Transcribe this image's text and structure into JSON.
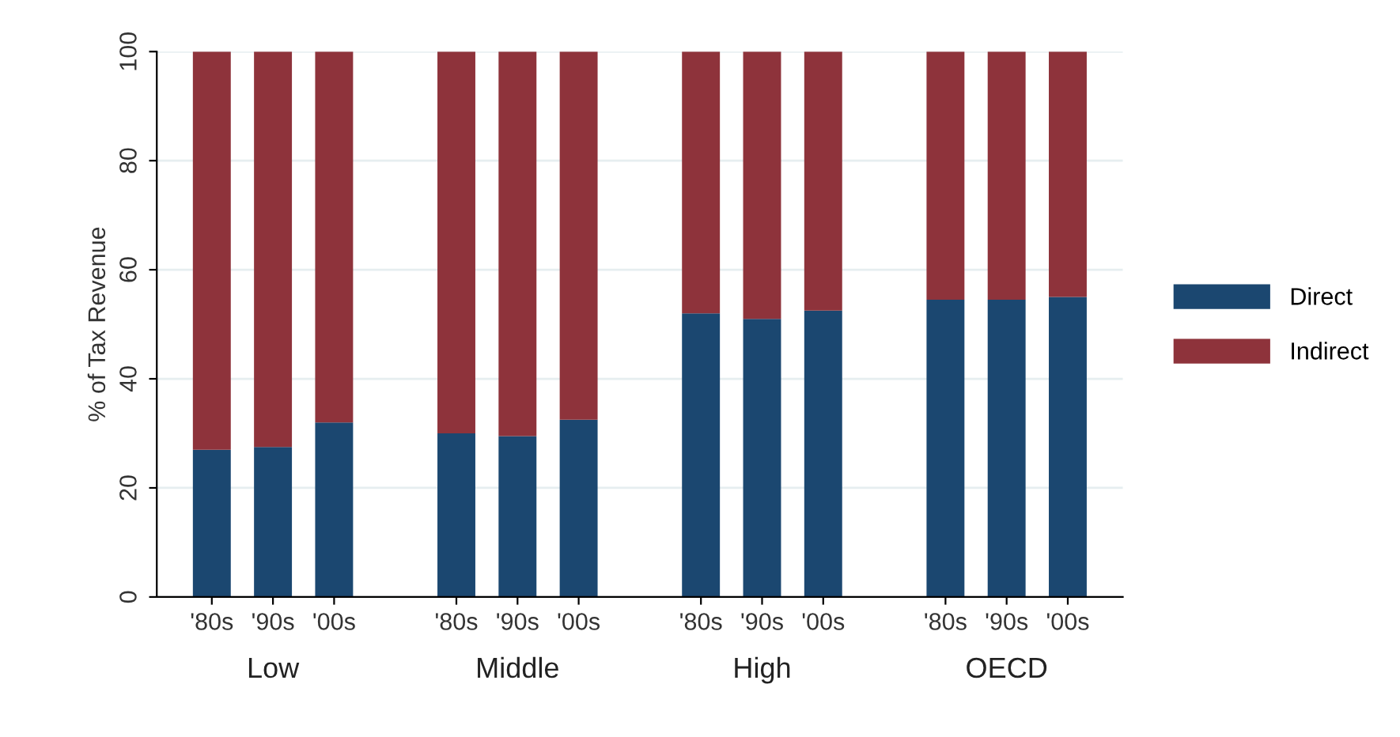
{
  "chart_data": {
    "type": "bar",
    "stacked": true,
    "ylabel": "% of Tax Revenue",
    "categories": [
      "'80s",
      "'90s",
      "'00s",
      null,
      "'80s",
      "'90s",
      "'00s",
      null,
      "'80s",
      "'90s",
      "'00s",
      null,
      "'80s",
      "'90s",
      "'00s"
    ],
    "series": [
      {
        "name": "Direct",
        "color": "#1b4770",
        "values": [
          27,
          27.5,
          32,
          null,
          30,
          29.5,
          32.5,
          null,
          52,
          51,
          52.5,
          null,
          54.5,
          54.5,
          55
        ]
      },
      {
        "name": "Indirect",
        "color": "#8e333b",
        "values": [
          73,
          72.5,
          68,
          null,
          70,
          70.5,
          67.5,
          null,
          48,
          49,
          47.5,
          null,
          45.5,
          45.5,
          45
        ]
      }
    ],
    "annotations": [
      "Low",
      "Middle",
      "High",
      "OECD"
    ],
    "ylim": [
      0,
      100
    ],
    "yticks": [
      0,
      20,
      40,
      60,
      80,
      100
    ],
    "grid": "y",
    "legend": "right"
  }
}
